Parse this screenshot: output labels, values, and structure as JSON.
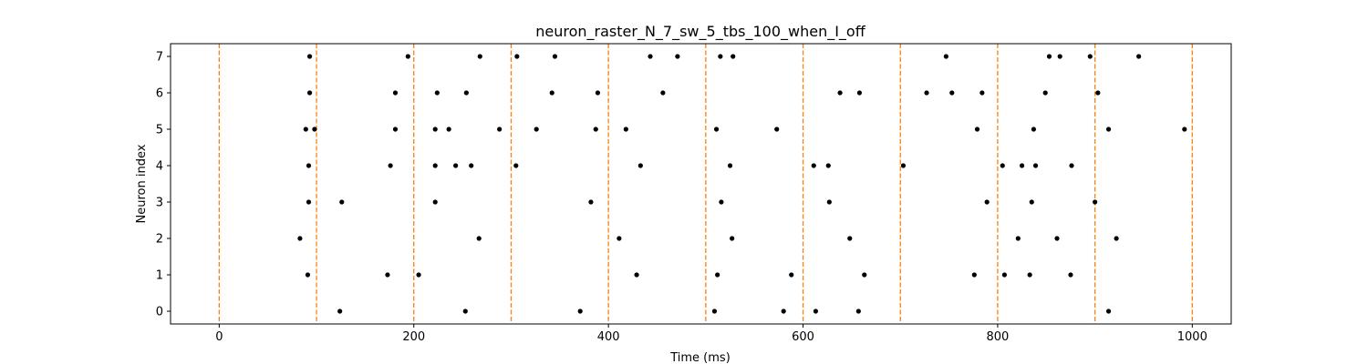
{
  "chart_data": {
    "type": "scatter",
    "title": "neuron_raster_N_7_sw_5_tbs_100_when_I_off",
    "xlabel": "Time (ms)",
    "ylabel": "Neuron index",
    "xlim": [
      -50,
      1040
    ],
    "ylim": [
      -0.35,
      7.35
    ],
    "xticks": [
      0,
      200,
      400,
      600,
      800,
      1000
    ],
    "yticks": [
      0,
      1,
      2,
      3,
      4,
      5,
      6,
      7
    ],
    "grid": false,
    "marker_color": "#000000",
    "vline_color": "#ff7f0e",
    "vlines": [
      0,
      100,
      200,
      300,
      400,
      500,
      600,
      700,
      800,
      900,
      1000
    ],
    "spikes": [
      {
        "neuron": 0,
        "times": [
          124,
          253,
          371,
          509,
          580,
          613,
          657,
          914
        ]
      },
      {
        "neuron": 1,
        "times": [
          91,
          173,
          205,
          429,
          512,
          588,
          663,
          776,
          807,
          833,
          875
        ]
      },
      {
        "neuron": 2,
        "times": [
          83,
          267,
          411,
          527,
          648,
          821,
          861,
          922
        ]
      },
      {
        "neuron": 3,
        "times": [
          92,
          126,
          222,
          382,
          516,
          627,
          789,
          835,
          900
        ]
      },
      {
        "neuron": 4,
        "times": [
          92,
          176,
          222,
          243,
          259,
          305,
          433,
          525,
          611,
          626,
          703,
          805,
          825,
          839,
          876
        ]
      },
      {
        "neuron": 5,
        "times": [
          89,
          98,
          181,
          222,
          236,
          288,
          326,
          387,
          418,
          511,
          573,
          779,
          837,
          914,
          992
        ]
      },
      {
        "neuron": 6,
        "times": [
          93,
          181,
          224,
          254,
          342,
          389,
          456,
          638,
          658,
          727,
          753,
          784,
          849,
          903
        ]
      },
      {
        "neuron": 7,
        "times": [
          93,
          194,
          268,
          306,
          345,
          443,
          471,
          515,
          528,
          747,
          853,
          864,
          895,
          945
        ]
      }
    ]
  }
}
